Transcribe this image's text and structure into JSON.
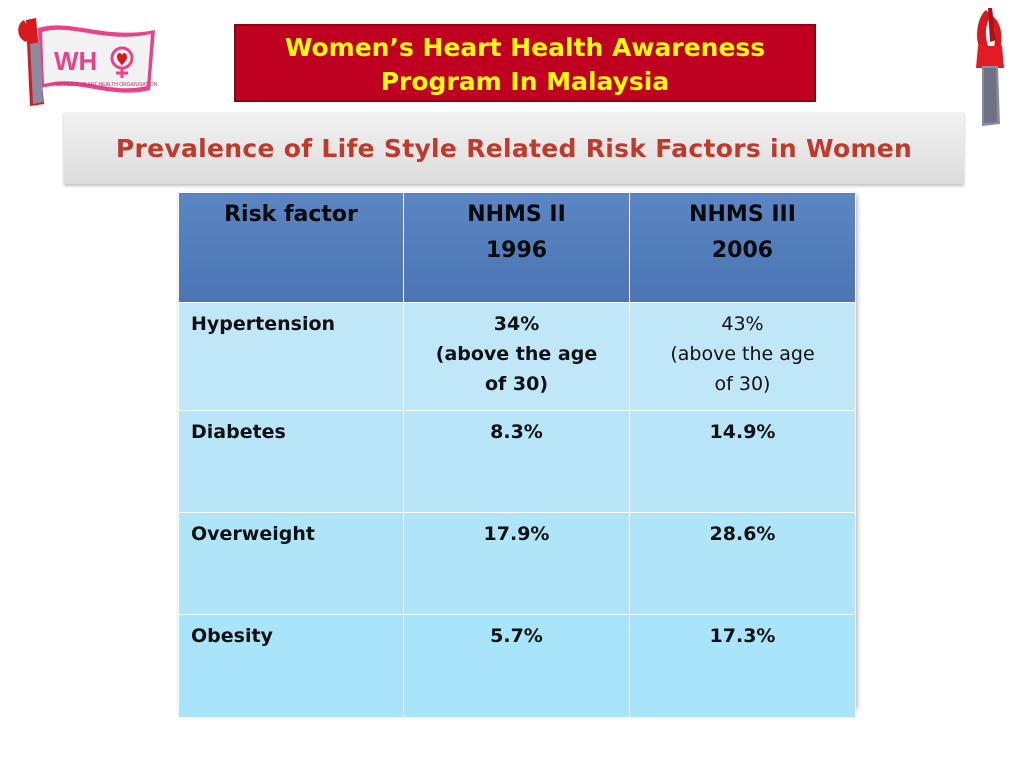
{
  "header": {
    "title_line1": "Women’s Heart Health Awareness",
    "title_line2": "Program In Malaysia",
    "subtitle": "Prevalence of Life Style Related Risk Factors in Women"
  },
  "logo": {
    "letters": "WH",
    "organisation": "WOMEN'S HEART HEALTH ORGANISATION",
    "colors": {
      "flag": "#e8438a",
      "ribbon": "#d81920",
      "text": "#ffffff"
    }
  },
  "table": {
    "headers": [
      {
        "line1": "Risk factor",
        "line2": ""
      },
      {
        "line1": "NHMS II",
        "line2": "1996"
      },
      {
        "line1": "NHMS III",
        "line2": "2006"
      }
    ],
    "rows": [
      {
        "factor": "Hypertension",
        "v1": "34%",
        "v1_note_a": "(above the age",
        "v1_note_b": "of 30)",
        "v2": "43%",
        "v2_note_a": "(above the age",
        "v2_note_b": "of 30)"
      },
      {
        "factor": "Diabetes",
        "v1": "8.3%",
        "v2": "14.9%"
      },
      {
        "factor": "Overweight",
        "v1": "17.9%",
        "v2": "28.6%"
      },
      {
        "factor": "Obesity",
        "v1": "5.7%",
        "v2": "17.3%"
      }
    ]
  },
  "colors": {
    "title_bg": "#c00020",
    "title_text": "#ffff00",
    "subtitle_text": "#c0392b",
    "header_bg": "#4f7ab8",
    "cell_bg": "#b8e6f8"
  }
}
